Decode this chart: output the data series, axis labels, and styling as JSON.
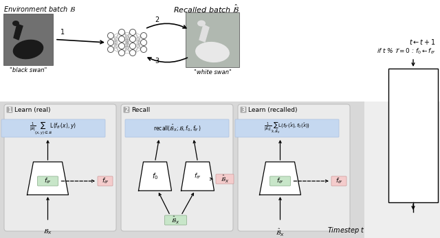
{
  "bg_color": "#ffffff",
  "panel_bg": "#d8d8d8",
  "white": "#ffffff",
  "blue_box": "#c5d8f0",
  "green_box": "#c8e6c9",
  "red_box": "#f4cccc",
  "env_label": "Environment batch $\\mathcal{B}$",
  "recalled_label": "Recalled batch $\\hat{\\mathcal{B}}$",
  "black_swan_label": "\"black swan\"",
  "white_swan_label": "\"white swan\"",
  "timestep_label": "Timestep $t$",
  "t_update": "$t \\leftarrow t+1$",
  "t_cond": "if $t$ % $\\mathcal{T} = 0$ : $f_0 \\leftarrow f_{\\theta'}$",
  "panel1_title": "Learn (real)",
  "panel2_title": "Recall",
  "panel3_title": "Learn (recalled)"
}
